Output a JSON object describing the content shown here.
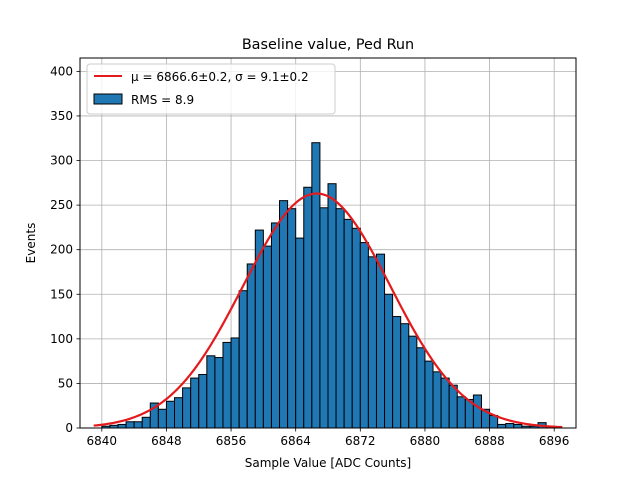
{
  "chart_data": {
    "type": "bar",
    "title": "Baseline value, Ped Run",
    "xlabel": "Sample Value [ADC Counts]",
    "ylabel": "Events",
    "xlim": [
      6837.3,
      6898.7
    ],
    "ylim": [
      0,
      415
    ],
    "grid": true,
    "legend_placement": "top-left",
    "xticks": [
      6840,
      6848,
      6856,
      6864,
      6872,
      6880,
      6888,
      6896
    ],
    "yticks": [
      0,
      50,
      100,
      150,
      200,
      250,
      300,
      350,
      400
    ],
    "bin_width": 1,
    "histogram": {
      "name": "RMS = 8.9",
      "color": "#1f77b4",
      "edge_color": "#000000",
      "bin_starts": [
        6840,
        6841,
        6842,
        6843,
        6844,
        6845,
        6846,
        6847,
        6848,
        6849,
        6850,
        6851,
        6852,
        6853,
        6854,
        6855,
        6856,
        6857,
        6858,
        6859,
        6860,
        6861,
        6862,
        6863,
        6864,
        6865,
        6866,
        6867,
        6868,
        6869,
        6870,
        6871,
        6872,
        6873,
        6874,
        6875,
        6876,
        6877,
        6878,
        6879,
        6880,
        6881,
        6882,
        6883,
        6884,
        6885,
        6886,
        6887,
        6888,
        6889,
        6890,
        6891,
        6892,
        6893,
        6894,
        6895
      ],
      "counts": [
        2,
        3,
        4,
        7,
        7,
        12,
        28,
        21,
        30,
        34,
        45,
        56,
        60,
        81,
        79,
        96,
        101,
        154,
        184,
        222,
        204,
        230,
        255,
        246,
        213,
        270,
        320,
        247,
        274,
        246,
        234,
        224,
        208,
        192,
        195,
        150,
        125,
        117,
        103,
        90,
        75,
        63,
        56,
        48,
        35,
        32,
        37,
        21,
        14,
        4,
        5,
        4,
        2,
        2,
        6,
        2
      ]
    },
    "fit": {
      "name": "$\\mu = 6866.6{\\pm}0.2$, $\\sigma = 9.1{\\pm}0.2$",
      "legend_label_main": "μ = 6866.6±0.2, σ = 9.1±0.2",
      "type": "gaussian",
      "mu": 6866.6,
      "sigma": 9.1,
      "amplitude": 263,
      "x_range": [
        6839,
        6897
      ],
      "color": "#e41a1c"
    },
    "legend": [
      {
        "label": "μ = 6866.6±0.2, σ = 9.1±0.2",
        "kind": "line"
      },
      {
        "label": "RMS = 8.9",
        "kind": "patch"
      }
    ]
  }
}
